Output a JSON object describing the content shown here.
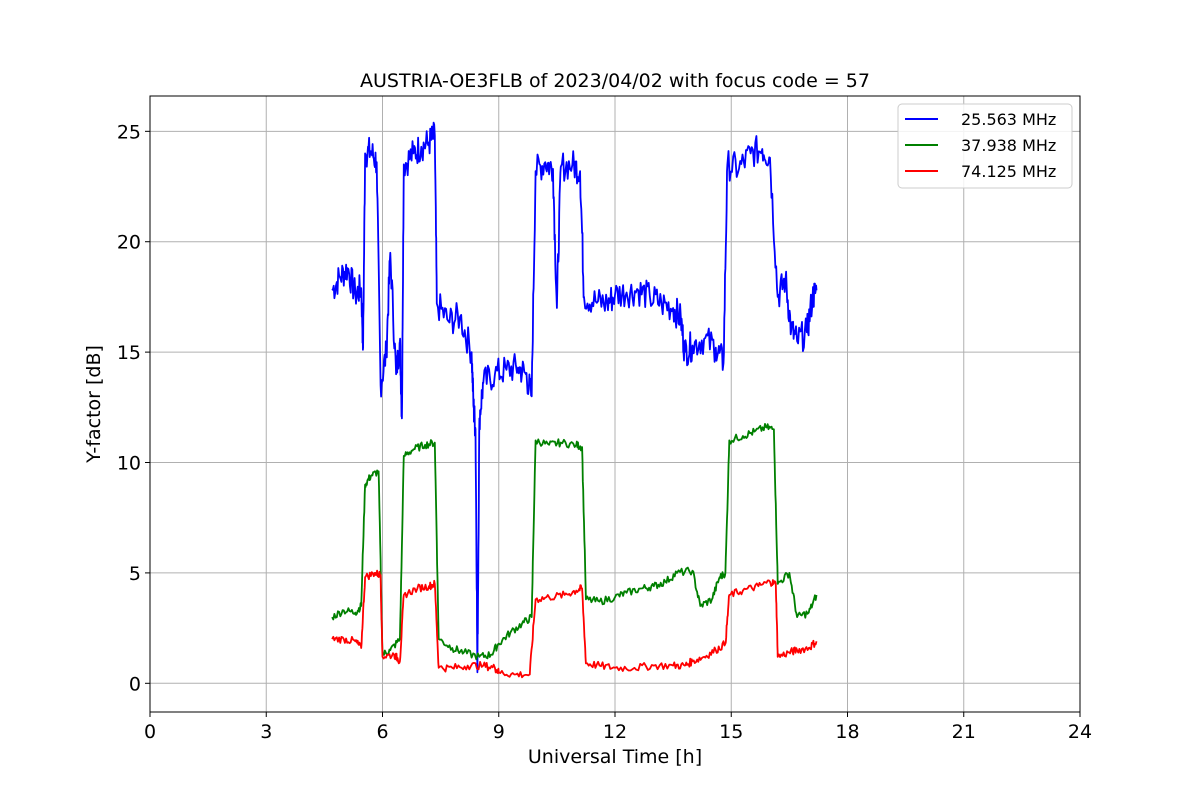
{
  "chart_data": {
    "type": "line",
    "title": "AUSTRIA-OE3FLB of 2023/04/02 with focus code = 57",
    "xlabel": "Universal Time [h]",
    "ylabel": "Y-factor [dB]",
    "xlim": [
      0,
      24
    ],
    "ylim": [
      -1.3,
      26.6
    ],
    "xticks": [
      0,
      3,
      6,
      9,
      12,
      15,
      18,
      21,
      24
    ],
    "yticks": [
      0,
      5,
      10,
      15,
      20,
      25
    ],
    "grid": true,
    "legend_position": "top-right",
    "series": [
      {
        "name": "25.563 MHz",
        "color": "#0000ff",
        "points": [
          [
            4.7,
            17.8
          ],
          [
            4.9,
            18.4
          ],
          [
            5.1,
            18.8
          ],
          [
            5.3,
            17.6
          ],
          [
            5.45,
            17.9
          ],
          [
            5.5,
            15.2
          ],
          [
            5.55,
            24.0
          ],
          [
            5.7,
            24.1
          ],
          [
            5.85,
            23.6
          ],
          [
            5.95,
            13.5
          ],
          [
            6.1,
            15.0
          ],
          [
            6.2,
            19.5
          ],
          [
            6.35,
            14.0
          ],
          [
            6.45,
            15.5
          ],
          [
            6.5,
            12.0
          ],
          [
            6.55,
            23.5
          ],
          [
            6.8,
            24.0
          ],
          [
            7.0,
            24.3
          ],
          [
            7.2,
            24.5
          ],
          [
            7.35,
            24.8
          ],
          [
            7.4,
            17.2
          ],
          [
            7.7,
            16.4
          ],
          [
            8.0,
            16.6
          ],
          [
            8.3,
            15.0
          ],
          [
            8.35,
            12.5
          ],
          [
            8.4,
            11.5
          ],
          [
            8.45,
            0.5
          ],
          [
            8.5,
            12.0
          ],
          [
            8.6,
            13.6
          ],
          [
            8.9,
            14.0
          ],
          [
            9.2,
            14.2
          ],
          [
            9.5,
            14.3
          ],
          [
            9.7,
            14.0
          ],
          [
            9.85,
            13.0
          ],
          [
            9.95,
            23.2
          ],
          [
            10.2,
            23.6
          ],
          [
            10.4,
            23.3
          ],
          [
            10.5,
            17.0
          ],
          [
            10.6,
            23.4
          ],
          [
            10.9,
            23.5
          ],
          [
            11.1,
            23.2
          ],
          [
            11.2,
            17.5
          ],
          [
            11.5,
            17.3
          ],
          [
            11.8,
            17.2
          ],
          [
            12.0,
            17.6
          ],
          [
            12.3,
            17.7
          ],
          [
            12.6,
            17.8
          ],
          [
            12.9,
            17.5
          ],
          [
            13.2,
            17.2
          ],
          [
            13.5,
            17.0
          ],
          [
            13.7,
            16.5
          ],
          [
            13.8,
            15.0
          ],
          [
            14.0,
            15.3
          ],
          [
            14.3,
            15.6
          ],
          [
            14.6,
            15.2
          ],
          [
            14.8,
            14.5
          ],
          [
            14.9,
            23.5
          ],
          [
            15.2,
            23.3
          ],
          [
            15.5,
            24.0
          ],
          [
            15.8,
            24.2
          ],
          [
            16.0,
            23.8
          ],
          [
            16.2,
            17.5
          ],
          [
            16.4,
            18.3
          ],
          [
            16.55,
            16.0
          ],
          [
            16.7,
            15.5
          ],
          [
            16.95,
            15.9
          ],
          [
            17.1,
            17.5
          ],
          [
            17.2,
            17.8
          ]
        ]
      },
      {
        "name": "37.938 MHz",
        "color": "#008000",
        "points": [
          [
            4.7,
            3.0
          ],
          [
            5.0,
            3.3
          ],
          [
            5.3,
            3.2
          ],
          [
            5.45,
            3.5
          ],
          [
            5.55,
            9.0
          ],
          [
            5.7,
            9.4
          ],
          [
            5.9,
            9.6
          ],
          [
            6.0,
            1.3
          ],
          [
            6.2,
            1.5
          ],
          [
            6.45,
            2.0
          ],
          [
            6.55,
            10.3
          ],
          [
            6.8,
            10.6
          ],
          [
            7.1,
            10.8
          ],
          [
            7.35,
            10.9
          ],
          [
            7.45,
            2.0
          ],
          [
            7.8,
            1.6
          ],
          [
            8.1,
            1.4
          ],
          [
            8.5,
            1.2
          ],
          [
            8.8,
            1.3
          ],
          [
            9.0,
            1.8
          ],
          [
            9.3,
            2.3
          ],
          [
            9.6,
            2.7
          ],
          [
            9.85,
            3.0
          ],
          [
            9.95,
            11.0
          ],
          [
            10.3,
            10.8
          ],
          [
            10.6,
            10.9
          ],
          [
            11.0,
            10.8
          ],
          [
            11.15,
            10.7
          ],
          [
            11.25,
            3.8
          ],
          [
            11.6,
            3.7
          ],
          [
            12.0,
            3.9
          ],
          [
            12.3,
            4.1
          ],
          [
            12.7,
            4.3
          ],
          [
            13.0,
            4.4
          ],
          [
            13.3,
            4.6
          ],
          [
            13.6,
            5.0
          ],
          [
            14.0,
            5.1
          ],
          [
            14.2,
            3.5
          ],
          [
            14.5,
            3.8
          ],
          [
            14.7,
            4.8
          ],
          [
            14.85,
            5.0
          ],
          [
            14.95,
            11.0
          ],
          [
            15.3,
            11.2
          ],
          [
            15.6,
            11.4
          ],
          [
            15.9,
            11.6
          ],
          [
            16.1,
            11.5
          ],
          [
            16.2,
            4.5
          ],
          [
            16.5,
            5.0
          ],
          [
            16.7,
            3.0
          ],
          [
            17.0,
            3.2
          ],
          [
            17.2,
            4.0
          ]
        ]
      },
      {
        "name": "74.125 MHz",
        "color": "#ff0000",
        "points": [
          [
            4.7,
            2.0
          ],
          [
            5.0,
            2.0
          ],
          [
            5.3,
            1.9
          ],
          [
            5.45,
            1.6
          ],
          [
            5.55,
            4.8
          ],
          [
            5.8,
            5.0
          ],
          [
            5.95,
            4.9
          ],
          [
            6.0,
            1.2
          ],
          [
            6.3,
            1.3
          ],
          [
            6.45,
            1.0
          ],
          [
            6.55,
            4.0
          ],
          [
            6.9,
            4.3
          ],
          [
            7.2,
            4.4
          ],
          [
            7.35,
            4.5
          ],
          [
            7.45,
            0.7
          ],
          [
            7.8,
            0.7
          ],
          [
            8.2,
            0.8
          ],
          [
            8.6,
            0.8
          ],
          [
            8.9,
            0.7
          ],
          [
            9.0,
            0.5
          ],
          [
            9.4,
            0.4
          ],
          [
            9.8,
            0.4
          ],
          [
            9.95,
            3.8
          ],
          [
            10.3,
            3.9
          ],
          [
            10.7,
            4.0
          ],
          [
            11.0,
            4.2
          ],
          [
            11.15,
            4.3
          ],
          [
            11.25,
            0.9
          ],
          [
            11.6,
            0.8
          ],
          [
            12.0,
            0.7
          ],
          [
            12.5,
            0.7
          ],
          [
            13.0,
            0.8
          ],
          [
            13.5,
            0.8
          ],
          [
            13.8,
            0.8
          ],
          [
            14.0,
            1.0
          ],
          [
            14.3,
            1.2
          ],
          [
            14.6,
            1.5
          ],
          [
            14.85,
            1.8
          ],
          [
            14.95,
            4.0
          ],
          [
            15.3,
            4.2
          ],
          [
            15.7,
            4.4
          ],
          [
            16.0,
            4.6
          ],
          [
            16.15,
            4.5
          ],
          [
            16.2,
            1.2
          ],
          [
            16.5,
            1.4
          ],
          [
            16.7,
            1.5
          ],
          [
            17.0,
            1.6
          ],
          [
            17.2,
            1.9
          ]
        ]
      }
    ]
  }
}
